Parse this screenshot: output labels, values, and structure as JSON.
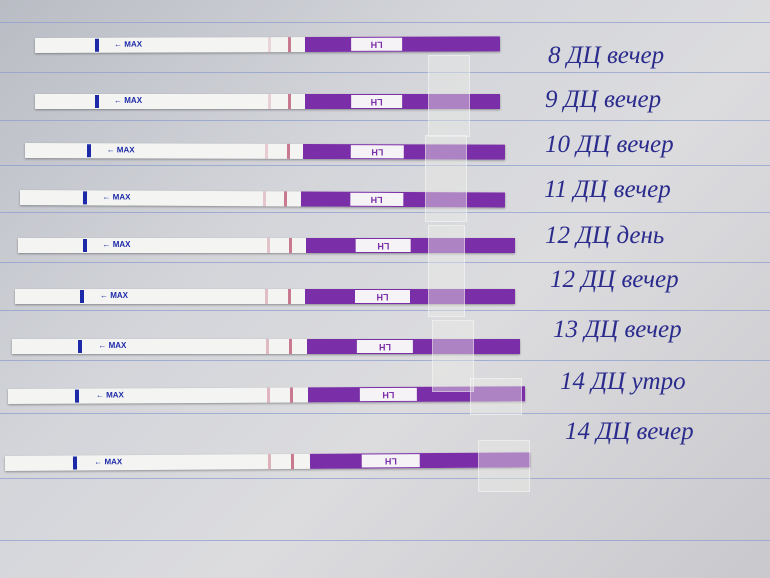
{
  "strip_print": {
    "max": "← MAX",
    "lh": "LH"
  },
  "colors": {
    "strip_purple": "#7a2ea8",
    "marker_blue": "#1d2aa8",
    "ink": "#2a2b8c",
    "paper_rule": "#8f9fcf"
  },
  "labels": [
    "8 ДЦ вечер",
    "9 ДЦ вечер",
    "10 ДЦ вечер",
    "11 ДЦ вечер",
    "12 ДЦ день",
    "12 ДЦ вечер",
    "13 ДЦ вечер",
    "14 ДЦ утро",
    "14 ДЦ вечер"
  ]
}
